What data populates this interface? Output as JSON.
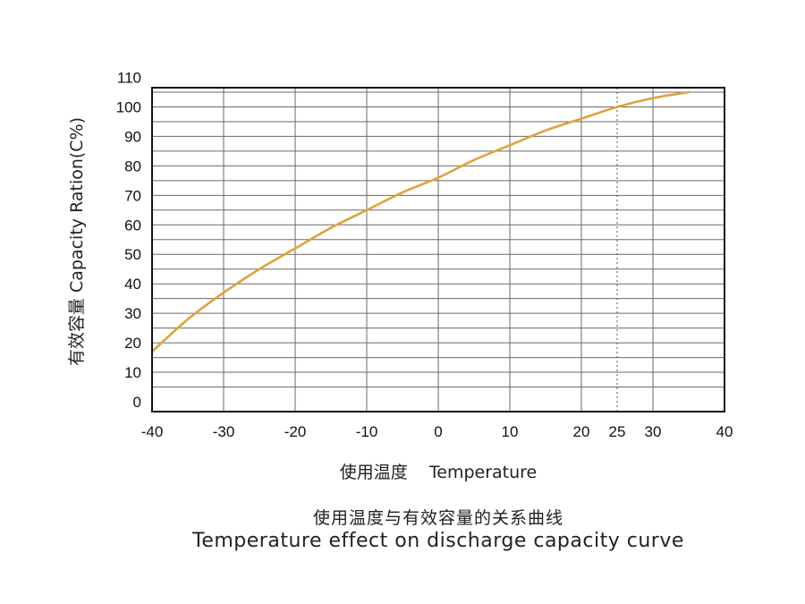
{
  "chart_data": {
    "type": "line",
    "ylabel": "有效容量 Capacity Ration(C%)",
    "xlabel": "使用温度    Temperature",
    "xlim": [
      -40,
      40
    ],
    "x_ticks": [
      -40,
      -30,
      -20,
      -10,
      0,
      10,
      20,
      25,
      30,
      40
    ],
    "x_tick_labels": [
      "-40",
      "-30",
      "-20",
      "-10",
      "0",
      "10",
      "20",
      "25",
      "30",
      "40"
    ],
    "y_ticks": [
      0,
      10,
      20,
      30,
      40,
      50,
      60,
      70,
      80,
      90,
      100,
      110
    ],
    "y_tick_labels": [
      "0",
      "10",
      "20",
      "30",
      "40",
      "50",
      "60",
      "70",
      "80",
      "90",
      "100",
      "110"
    ],
    "reference_line": {
      "x": 25,
      "style": "dotted"
    },
    "grid": true,
    "series": [
      {
        "color": "#e0a23c",
        "x": [
          -40,
          -35,
          -30,
          -25,
          -20,
          -15,
          -10,
          -5,
          0,
          5,
          10,
          15,
          20,
          25,
          30,
          35
        ],
        "y": [
          17,
          28,
          37,
          45,
          52,
          59,
          65,
          71,
          76,
          82,
          87,
          92,
          96,
          100,
          103,
          105
        ]
      }
    ]
  },
  "caption": {
    "zh": "使用温度与有效容量的关系曲线",
    "en": "Temperature effect on discharge capacity curve"
  }
}
